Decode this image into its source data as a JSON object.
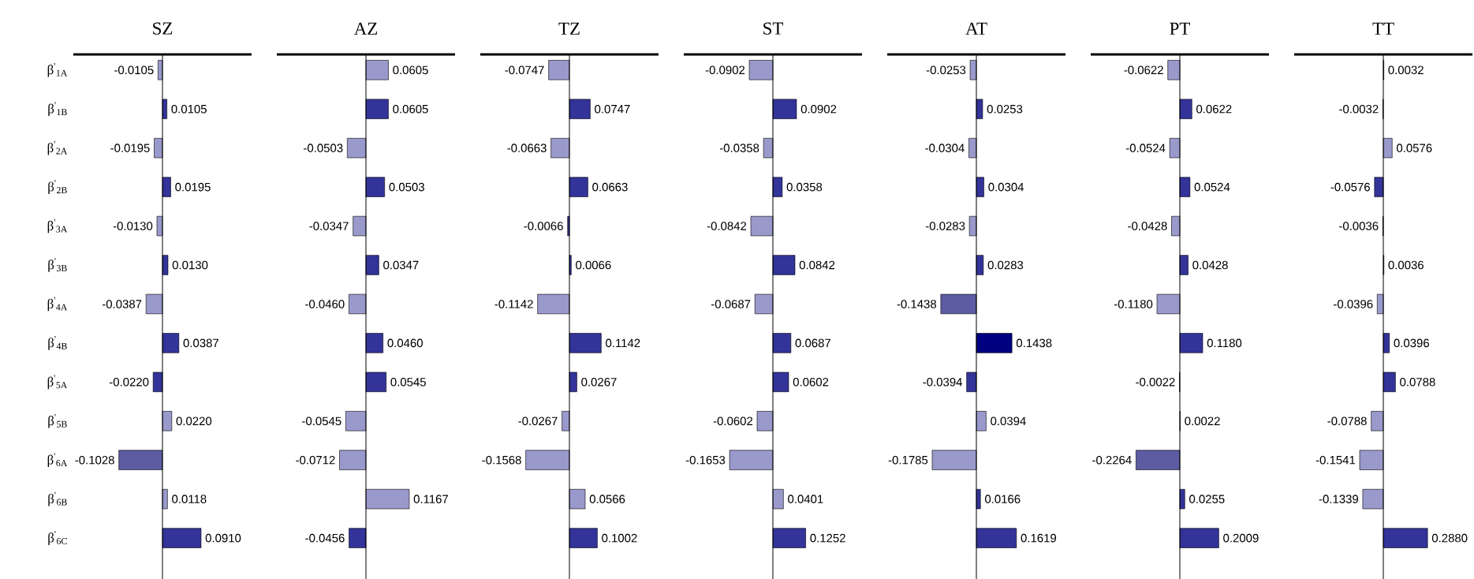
{
  "chart_data": [
    {
      "type": "bar",
      "orientation": "horizontal",
      "title": "SZ",
      "tick_labels": "y",
      "categories": [
        "β$^{'}$$_{1A}$",
        "β$^{'}$$_{1B}$",
        "β$^{'}$$_{2A}$",
        "β$^{'}$$_{2B}$",
        "β$^{'}$$_{3A}$",
        "β$^{'}$$_{3B}$",
        "β$^{'}$$_{4A}$",
        "β$^{'}$$_{4B}$",
        "β$^{'}$$_{5A}$",
        "β$^{'}$$_{5B}$",
        "β$^{'}$$_{6A}$",
        "β$^{'}$$_{6B}$",
        "β$^{'}$$_{6C}$"
      ],
      "xlim": [
        -0.21,
        0.21
      ],
      "values": [
        -0.0105,
        0.0105,
        -0.0195,
        0.0195,
        -0.013,
        0.013,
        -0.0387,
        0.0387,
        -0.022,
        0.022,
        -0.1028,
        0.0118,
        0.091
      ],
      "value_labels": [
        "-0.0105",
        "0.0105",
        "-0.0195",
        "0.0195",
        "-0.0130",
        "0.0130",
        "-0.0387",
        "0.0387",
        "-0.0220",
        "0.0220",
        "-0.1028",
        "0.0118",
        "0.0910"
      ],
      "colors": [
        "#9999cc",
        "#333399",
        "#9999cc",
        "#333399",
        "#9999cc",
        "#333399",
        "#9999cc",
        "#333399",
        "#333399",
        "#9999cc",
        "#5c5ca3",
        "#9999cc",
        "#333399"
      ]
    },
    {
      "type": "bar",
      "orientation": "horizontal",
      "title": "AZ",
      "tick_labels": false,
      "categories": [
        null,
        null,
        null,
        null,
        null,
        null,
        null,
        null,
        null,
        null,
        null,
        null,
        null
      ],
      "xlim": [
        -0.24,
        0.24
      ],
      "values": [
        0.0605,
        0.0605,
        -0.0503,
        0.0503,
        -0.0347,
        0.0347,
        -0.046,
        0.046,
        0.0545,
        -0.0545,
        -0.0712,
        0.1167,
        -0.0456
      ],
      "value_labels": [
        "0.0605",
        "0.0605",
        "-0.0503",
        "0.0503",
        "-0.0347",
        "0.0347",
        "-0.0460",
        "0.0460",
        "0.0545",
        "-0.0545",
        "-0.0712",
        "0.1167",
        "-0.0456"
      ],
      "colors": [
        "#9999cc",
        "#333399",
        "#9999cc",
        "#333399",
        "#9999cc",
        "#333399",
        "#9999cc",
        "#333399",
        "#333399",
        "#9999cc",
        "#9999cc",
        "#9999cc",
        "#333399"
      ]
    },
    {
      "type": "bar",
      "orientation": "horizontal",
      "title": "TZ",
      "tick_labels": false,
      "categories": [
        null,
        null,
        null,
        null,
        null,
        null,
        null,
        null,
        null,
        null,
        null,
        null,
        null
      ],
      "xlim": [
        -0.32,
        0.32
      ],
      "values": [
        -0.0747,
        0.0747,
        -0.0663,
        0.0663,
        -0.0066,
        0.0066,
        -0.1142,
        0.1142,
        0.0267,
        -0.0267,
        -0.1568,
        0.0566,
        0.1002
      ],
      "value_labels": [
        "-0.0747",
        "0.0747",
        "-0.0663",
        "0.0663",
        "-0.0066",
        "0.0066",
        "-0.1142",
        "0.1142",
        "0.0267",
        "-0.0267",
        "-0.1568",
        "0.0566",
        "0.1002"
      ],
      "colors": [
        "#9999cc",
        "#333399",
        "#9999cc",
        "#333399",
        "#333399",
        "#333399",
        "#9999cc",
        "#333399",
        "#333399",
        "#9999cc",
        "#9999cc",
        "#9999cc",
        "#333399"
      ]
    },
    {
      "type": "bar",
      "orientation": "horizontal",
      "title": "ST",
      "tick_labels": false,
      "categories": [
        null,
        null,
        null,
        null,
        null,
        null,
        null,
        null,
        null,
        null,
        null,
        null,
        null
      ],
      "xlim": [
        -0.34,
        0.34
      ],
      "values": [
        -0.0902,
        0.0902,
        -0.0358,
        0.0358,
        -0.0842,
        0.0842,
        -0.0687,
        0.0687,
        0.0602,
        -0.0602,
        -0.1653,
        0.0401,
        0.1252
      ],
      "value_labels": [
        "-0.0902",
        "0.0902",
        "-0.0358",
        "0.0358",
        "-0.0842",
        "0.0842",
        "-0.0687",
        "0.0687",
        "0.0602",
        "-0.0602",
        "-0.1653",
        "0.0401",
        "0.1252"
      ],
      "colors": [
        "#9999cc",
        "#333399",
        "#9999cc",
        "#333399",
        "#9999cc",
        "#333399",
        "#9999cc",
        "#333399",
        "#333399",
        "#9999cc",
        "#9999cc",
        "#9999cc",
        "#333399"
      ]
    },
    {
      "type": "bar",
      "orientation": "horizontal",
      "title": "AT",
      "tick_labels": false,
      "categories": [
        null,
        null,
        null,
        null,
        null,
        null,
        null,
        null,
        null,
        null,
        null,
        null,
        null
      ],
      "xlim": [
        -0.36,
        0.36
      ],
      "values": [
        -0.0253,
        0.0253,
        -0.0304,
        0.0304,
        -0.0283,
        0.0283,
        -0.1438,
        0.1438,
        -0.0394,
        0.0394,
        -0.1785,
        0.0166,
        0.1619
      ],
      "value_labels": [
        "-0.0253",
        "0.0253",
        "-0.0304",
        "0.0304",
        "-0.0283",
        "0.0283",
        "-0.1438",
        "0.1438",
        "-0.0394",
        "0.0394",
        "-0.1785",
        "0.0166",
        "0.1619"
      ],
      "colors": [
        "#9999cc",
        "#333399",
        "#9999cc",
        "#333399",
        "#9999cc",
        "#333399",
        "#5c5ca3",
        "#000080",
        "#333399",
        "#9999cc",
        "#9999cc",
        "#333399",
        "#333399"
      ]
    },
    {
      "type": "bar",
      "orientation": "horizontal",
      "title": "PT",
      "tick_labels": false,
      "categories": [
        null,
        null,
        null,
        null,
        null,
        null,
        null,
        null,
        null,
        null,
        null,
        null,
        null
      ],
      "xlim": [
        -0.46,
        0.46
      ],
      "values": [
        -0.0622,
        0.0622,
        -0.0524,
        0.0524,
        -0.0428,
        0.0428,
        -0.118,
        0.118,
        -0.0022,
        0.0022,
        -0.2264,
        0.0255,
        0.2009
      ],
      "value_labels": [
        "-0.0622",
        "0.0622",
        "-0.0524",
        "0.0524",
        "-0.0428",
        "0.0428",
        "-0.1180",
        "0.1180",
        "-0.0022",
        "0.0022",
        "-0.2264",
        "0.0255",
        "0.2009"
      ],
      "colors": [
        "#9999cc",
        "#333399",
        "#9999cc",
        "#333399",
        "#9999cc",
        "#333399",
        "#9999cc",
        "#333399",
        "#333399",
        "#333399",
        "#5c5ca3",
        "#333399",
        "#333399"
      ]
    },
    {
      "type": "bar",
      "orientation": "horizontal",
      "title": "TT",
      "tick_labels": false,
      "categories": [
        null,
        null,
        null,
        null,
        null,
        null,
        null,
        null,
        null,
        null,
        null,
        null,
        null
      ],
      "xlim": [
        -0.58,
        0.58
      ],
      "values": [
        0.0032,
        -0.0032,
        0.0576,
        -0.0576,
        -0.0036,
        0.0036,
        -0.0396,
        0.0396,
        0.0788,
        -0.0788,
        -0.1541,
        -0.1339,
        0.288
      ],
      "value_labels": [
        "0.0032",
        "-0.0032",
        "0.0576",
        "-0.0576",
        "-0.0036",
        "0.0036",
        "-0.0396",
        "0.0396",
        "0.0788",
        "-0.0788",
        "-0.1541",
        "-0.1339",
        "0.2880"
      ],
      "colors": [
        "#333399",
        "#333399",
        "#9999cc",
        "#333399",
        "#333399",
        "#333399",
        "#9999cc",
        "#333399",
        "#333399",
        "#9999cc",
        "#9999cc",
        "#9999cc",
        "#333399"
      ]
    }
  ]
}
